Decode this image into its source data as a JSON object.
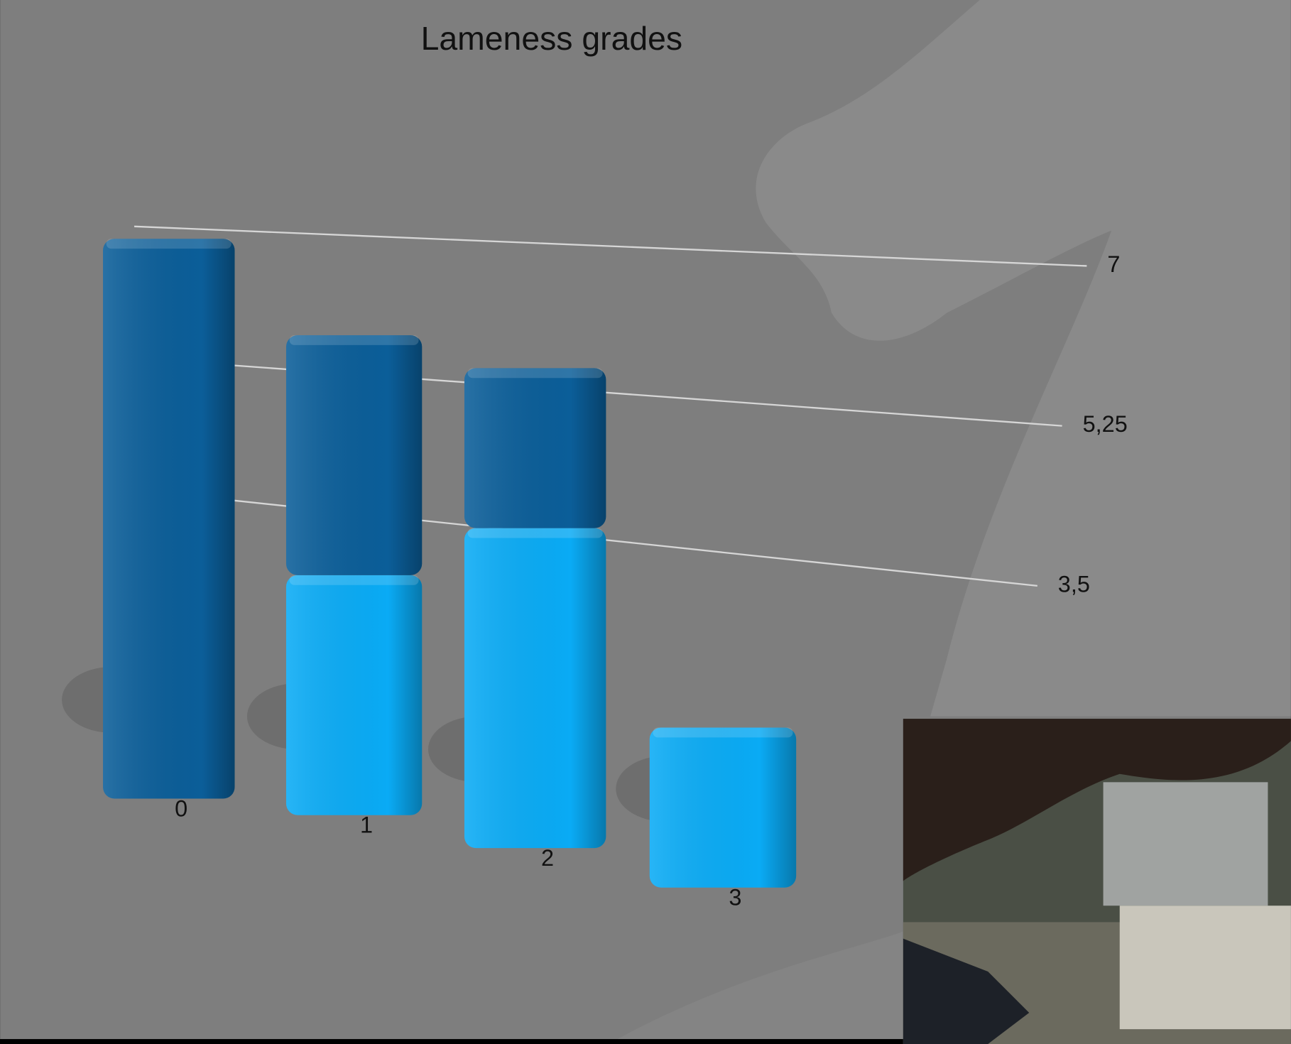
{
  "chart_data": {
    "type": "bar",
    "title": "Lameness grades",
    "categories": [
      "0",
      "1",
      "2",
      "3"
    ],
    "series": [
      {
        "color": "#0aabf5",
        "values": [
          0,
          3,
          4,
          2
        ]
      },
      {
        "color": "#0b5e99",
        "values": [
          7,
          3,
          2,
          0
        ]
      }
    ],
    "stacked": true,
    "ylim": [
      0,
      7
    ],
    "yticks": [
      {
        "value": 3.5,
        "label": "3,5"
      },
      {
        "value": 5.25,
        "label": "5,25"
      },
      7
    ],
    "grid": true
  }
}
